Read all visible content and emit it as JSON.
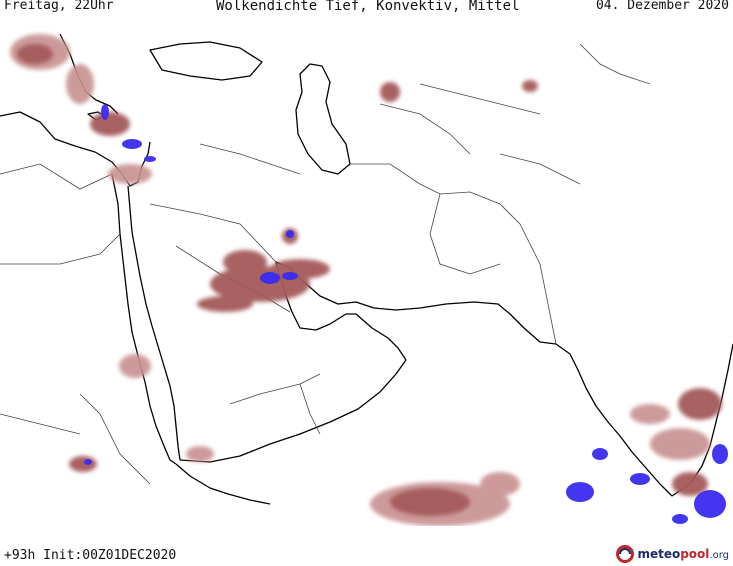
{
  "header": {
    "valid_time": "Freitag, 22Uhr",
    "title": "Wolkendichte  Tief, Konvektiv, Mittel",
    "date": "04. Dezember 2020"
  },
  "footer": {
    "run_info": "+93h Init:00Z01DEC2020"
  },
  "logo": {
    "part1": "meteo",
    "part2": "pool",
    "part3": ".org"
  },
  "colors": {
    "background": "#ffffff",
    "coastline": "#000000",
    "border": "#444444",
    "cloud_moderate": "#a45a5a",
    "cloud_light": "#c89090",
    "cloud_dense": "#3a2cf0"
  }
}
